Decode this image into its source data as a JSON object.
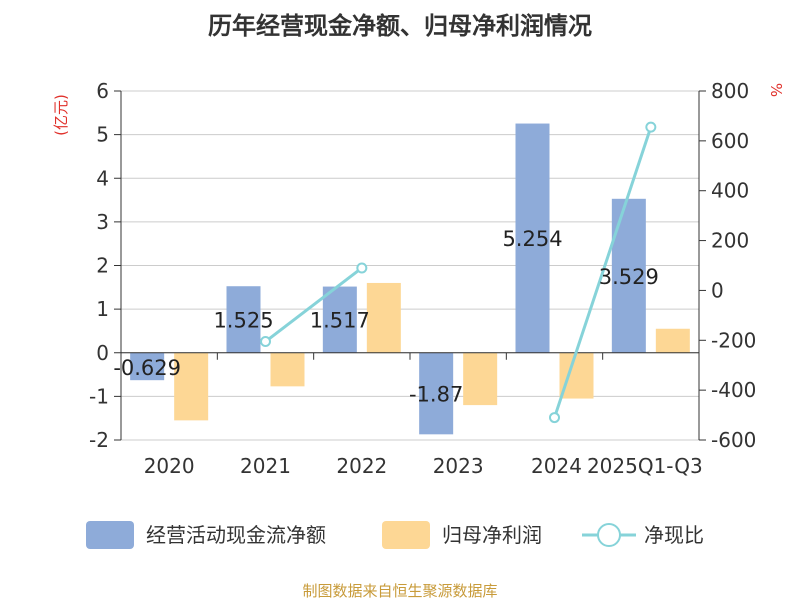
{
  "chart_data": {
    "type": "bar+line",
    "title": "历年经营现金净额、归母净利润情况",
    "categories": [
      "2020",
      "2021",
      "2022",
      "2023",
      "2024",
      "2025Q1-Q3"
    ],
    "series": [
      {
        "name": "经营活动现金流净额",
        "type": "bar",
        "axis": "left",
        "color": "#8eabd9",
        "values": [
          -0.629,
          1.525,
          1.517,
          -1.87,
          5.254,
          3.529
        ],
        "labels": [
          "-0.629",
          "1.525",
          "1.517",
          "-1.87",
          "5.254",
          "3.529"
        ]
      },
      {
        "name": "归母净利润",
        "type": "bar",
        "axis": "left",
        "color": "#fdd795",
        "values": [
          -1.55,
          -0.77,
          1.6,
          -1.2,
          -1.05,
          0.55
        ]
      },
      {
        "name": "净现比",
        "type": "line",
        "axis": "right",
        "color": "#86d3d9",
        "values": [
          null,
          -205,
          90,
          null,
          -510,
          655
        ]
      }
    ],
    "y_left": {
      "unit": "(亿元)",
      "min": -2,
      "max": 6,
      "ticks": [
        -2,
        -1,
        0,
        1,
        2,
        3,
        4,
        5,
        6
      ]
    },
    "y_right": {
      "unit": "%",
      "min": -600,
      "max": 800,
      "ticks": [
        -600,
        -400,
        -200,
        0,
        200,
        400,
        600,
        800
      ]
    },
    "legend_position": "bottom",
    "source": "制图数据来自恒生聚源数据库"
  }
}
